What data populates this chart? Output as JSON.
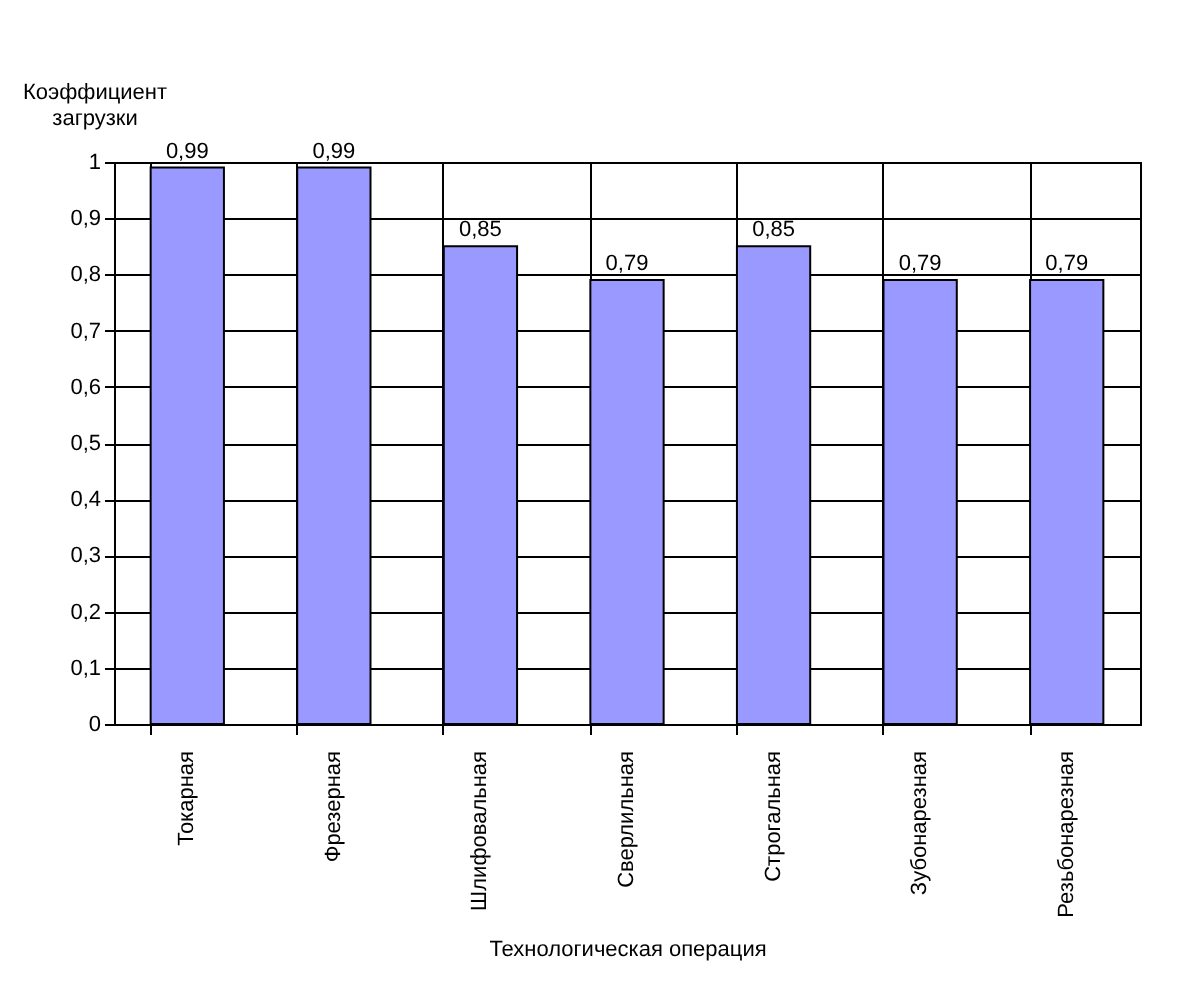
{
  "chart_data": {
    "type": "bar",
    "xlabel": "Технологическая операция",
    "ylabel": "Коэффициент загрузки",
    "categories": [
      "Токарная",
      "Фрезерная",
      "Шлифовальная",
      "Сверлильная",
      "Строгальная",
      "Зубонарезная",
      "Резьбонарезная"
    ],
    "values": [
      0.99,
      0.99,
      0.85,
      0.79,
      0.85,
      0.79,
      0.79
    ],
    "value_labels": [
      "0,99",
      "0,99",
      "0,85",
      "0,79",
      "0,85",
      "0,79",
      "0,79"
    ],
    "color": "#9999ff",
    "ylim": [
      0,
      1
    ],
    "yticks": [
      {
        "value": 0,
        "label": "0"
      },
      {
        "value": 0.1,
        "label": "0,1"
      },
      {
        "value": 0.2,
        "label": "0,2"
      },
      {
        "value": 0.3,
        "label": "0,3"
      },
      {
        "value": 0.4,
        "label": "0,4"
      },
      {
        "value": 0.5,
        "label": "0,5"
      },
      {
        "value": 0.6,
        "label": "0,6"
      },
      {
        "value": 0.7,
        "label": "0,7"
      },
      {
        "value": 0.8,
        "label": "0,8"
      },
      {
        "value": 0.9,
        "label": "0,9"
      },
      {
        "value": 1,
        "label": "1"
      }
    ],
    "grid": true
  }
}
